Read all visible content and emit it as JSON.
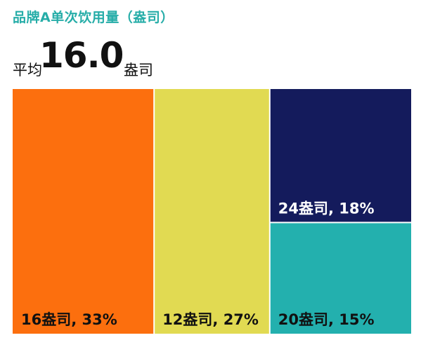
{
  "header": {
    "title": "品牌A单次饮用量（盎司）",
    "avg_prefix": "平均",
    "avg_value": "16.0",
    "avg_unit": "盎司"
  },
  "chart_data": {
    "type": "treemap",
    "title": "品牌A单次饮用量（盎司）",
    "unit": "盎司",
    "average": 16.0,
    "cells": [
      {
        "ounces": 16,
        "share": 33,
        "label": "16盎司, 33%",
        "color": "#FC6F0E",
        "text_color": "#111111"
      },
      {
        "ounces": 12,
        "share": 27,
        "label": "12盎司, 27%",
        "color": "#E1DA52",
        "text_color": "#111111"
      },
      {
        "ounces": 24,
        "share": 18,
        "label": "24盎司, 18%",
        "color": "#141B5C",
        "text_color": "#FFFFFF"
      },
      {
        "ounces": 20,
        "share": 15,
        "label": "20盎司, 15%",
        "color": "#23B0AE",
        "text_color": "#111111"
      }
    ]
  }
}
